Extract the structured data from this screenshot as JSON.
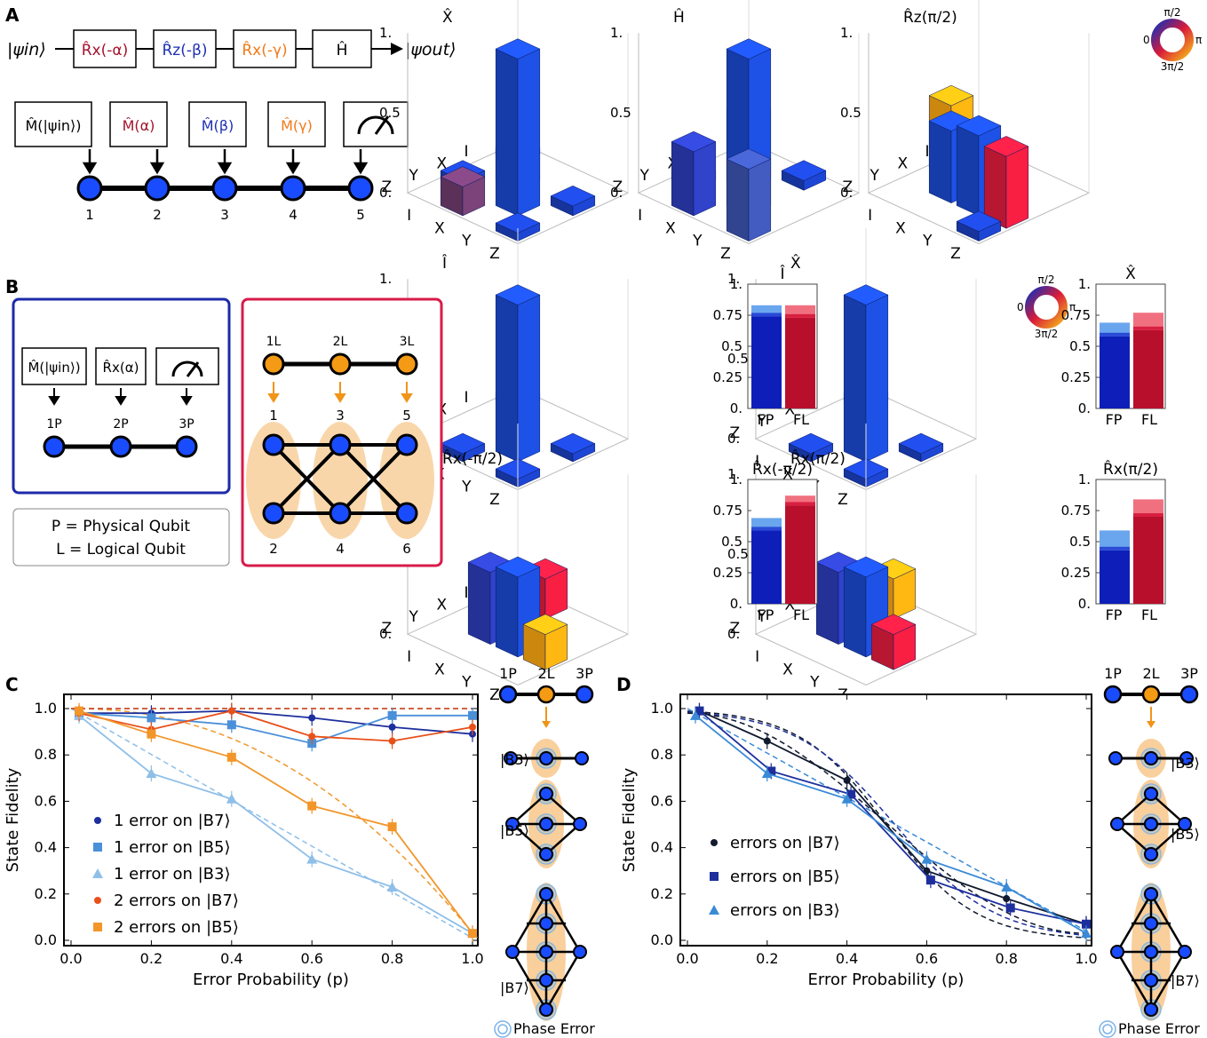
{
  "panel_labels": {
    "a": "A",
    "b": "B",
    "c": "C",
    "d": "D"
  },
  "panel_a": {
    "state_in": "|ψin⟩",
    "state_out": "|ψout⟩",
    "gates": [
      "R̂x(-α)",
      "R̂z(-β)",
      "R̂x(-γ)",
      "Ĥ"
    ],
    "measurements": [
      "M̂(|ψin⟩)",
      "M̂(α)",
      "M̂(β)",
      "M̂(γ)"
    ],
    "qubit_numbers": [
      "1",
      "2",
      "3",
      "4",
      "5"
    ],
    "colors": {
      "alpha": "#a3142d",
      "beta": "#1e2fb3",
      "gamma": "#f07a1a",
      "qubit": "#1a4cff"
    }
  },
  "panel_b": {
    "measurements": [
      "M̂(|ψin⟩)",
      "R̂x(α)"
    ],
    "physical_labels": [
      "1P",
      "2P",
      "3P"
    ],
    "logical_labels": [
      "1L",
      "2L",
      "3L"
    ],
    "cluster_numbers": [
      "1",
      "3",
      "5",
      "2",
      "4",
      "6"
    ],
    "legend_physical": "P = Physical Qubit",
    "legend_logical": "L = Logical Qubit"
  },
  "phase_wheel": {
    "top": "π/2",
    "right": "π",
    "bottom": "3π/2",
    "left": "0"
  },
  "tomography": {
    "z_ticks": [
      "1.",
      "0.5",
      "0."
    ],
    "axis_labels": [
      "Z",
      "Y",
      "X",
      "I"
    ],
    "axis_labels_right": [
      "I",
      "X",
      "Y",
      "Z"
    ],
    "plots": [
      {
        "title": "X̂"
      },
      {
        "title": "Ĥ"
      },
      {
        "title": "R̂z(π/2)"
      },
      {
        "title": "Î"
      },
      {
        "title": "X̂"
      },
      {
        "title": "R̂x(-π/2)"
      },
      {
        "title": "R̂x(π/2)"
      }
    ]
  },
  "fidelity_bars": {
    "y_ticks": [
      "1.",
      "0.75",
      "0.5",
      "0.25",
      "0."
    ],
    "x_labels": [
      "FP",
      "FL"
    ],
    "plots": [
      {
        "title": "Î",
        "fp": 0.74,
        "fp_err": 0.83,
        "fl": 0.73,
        "fl_err": 0.83
      },
      {
        "title": "X̂",
        "fp": 0.58,
        "fp_err": 0.69,
        "fl": 0.63,
        "fl_err": 0.77
      },
      {
        "title": "R̂x(-π/2)",
        "fp": 0.59,
        "fp_err": 0.69,
        "fl": 0.79,
        "fl_err": 0.87
      },
      {
        "title": "R̂x(π/2)",
        "fp": 0.43,
        "fp_err": 0.59,
        "fl": 0.7,
        "fl_err": 0.84
      }
    ]
  },
  "side_diagrams": {
    "top_labels": [
      "1P",
      "2L",
      "3P"
    ],
    "b3": "|B3⟩",
    "b5": "|B5⟩",
    "b7": "|B7⟩",
    "phase_error": "Phase Error"
  },
  "chart_data": [
    {
      "type": "line",
      "panel": "C",
      "xlabel": "Error Probability (p)",
      "ylabel": "State Fidelity",
      "xlim": [
        0,
        1
      ],
      "ylim": [
        0,
        1
      ],
      "x_ticks": [
        "0.0",
        "0.2",
        "0.4",
        "0.6",
        "0.8",
        "1.0"
      ],
      "y_ticks": [
        "0.0",
        "0.2",
        "0.4",
        "0.6",
        "0.8",
        "1.0"
      ],
      "legend_position": "bottom-left",
      "series": [
        {
          "name": "1 error on |B7⟩",
          "marker": "circle",
          "color": "#1d2f9c",
          "x": [
            0.02,
            0.2,
            0.4,
            0.6,
            0.8,
            1.0
          ],
          "y": [
            0.98,
            0.98,
            0.99,
            0.96,
            0.92,
            0.89
          ]
        },
        {
          "name": "1 error on |B5⟩",
          "marker": "square",
          "color": "#4a90d9",
          "x": [
            0.02,
            0.2,
            0.4,
            0.6,
            0.8,
            1.0
          ],
          "y": [
            0.98,
            0.96,
            0.93,
            0.85,
            0.97,
            0.97
          ]
        },
        {
          "name": "1 error on |B3⟩",
          "marker": "triangle",
          "color": "#8fbfe8",
          "x": [
            0.02,
            0.2,
            0.4,
            0.6,
            0.8,
            1.0
          ],
          "y": [
            0.97,
            0.72,
            0.61,
            0.35,
            0.23,
            0.03
          ]
        },
        {
          "name": "2 errors on |B7⟩",
          "marker": "circle",
          "color": "#e8501a",
          "x": [
            0.02,
            0.2,
            0.4,
            0.6,
            0.8,
            1.0
          ],
          "y": [
            0.98,
            0.91,
            0.99,
            0.88,
            0.86,
            0.92
          ]
        },
        {
          "name": "2 errors on |B5⟩",
          "marker": "square",
          "color": "#f2962a",
          "x": [
            0.02,
            0.2,
            0.4,
            0.6,
            0.8,
            1.0
          ],
          "y": [
            0.99,
            0.89,
            0.79,
            0.58,
            0.49,
            0.03
          ]
        }
      ]
    },
    {
      "type": "line",
      "panel": "D",
      "xlabel": "Error Probability (p)",
      "ylabel": "State Fidelity",
      "xlim": [
        0,
        1
      ],
      "ylim": [
        0,
        1
      ],
      "x_ticks": [
        "0.0",
        "0.2",
        "0.4",
        "0.6",
        "0.8",
        "1.0"
      ],
      "y_ticks": [
        "0.0",
        "0.2",
        "0.4",
        "0.6",
        "0.8",
        "1.0"
      ],
      "legend_position": "bottom-left",
      "series": [
        {
          "name": "errors on |B7⟩",
          "marker": "circle",
          "color": "#111a2e",
          "x": [
            0.03,
            0.2,
            0.4,
            0.6,
            0.8,
            1.0
          ],
          "y": [
            0.99,
            0.86,
            0.69,
            0.3,
            0.18,
            0.07
          ]
        },
        {
          "name": "errors on |B5⟩",
          "marker": "square",
          "color": "#1d2f9c",
          "x": [
            0.03,
            0.21,
            0.41,
            0.61,
            0.81,
            1.0
          ],
          "y": [
            0.99,
            0.73,
            0.63,
            0.26,
            0.14,
            0.07
          ]
        },
        {
          "name": "errors on |B3⟩",
          "marker": "triangle",
          "color": "#3a8ad6",
          "x": [
            0.02,
            0.2,
            0.4,
            0.6,
            0.8,
            1.0
          ],
          "y": [
            0.97,
            0.72,
            0.61,
            0.35,
            0.23,
            0.03
          ]
        }
      ]
    }
  ]
}
